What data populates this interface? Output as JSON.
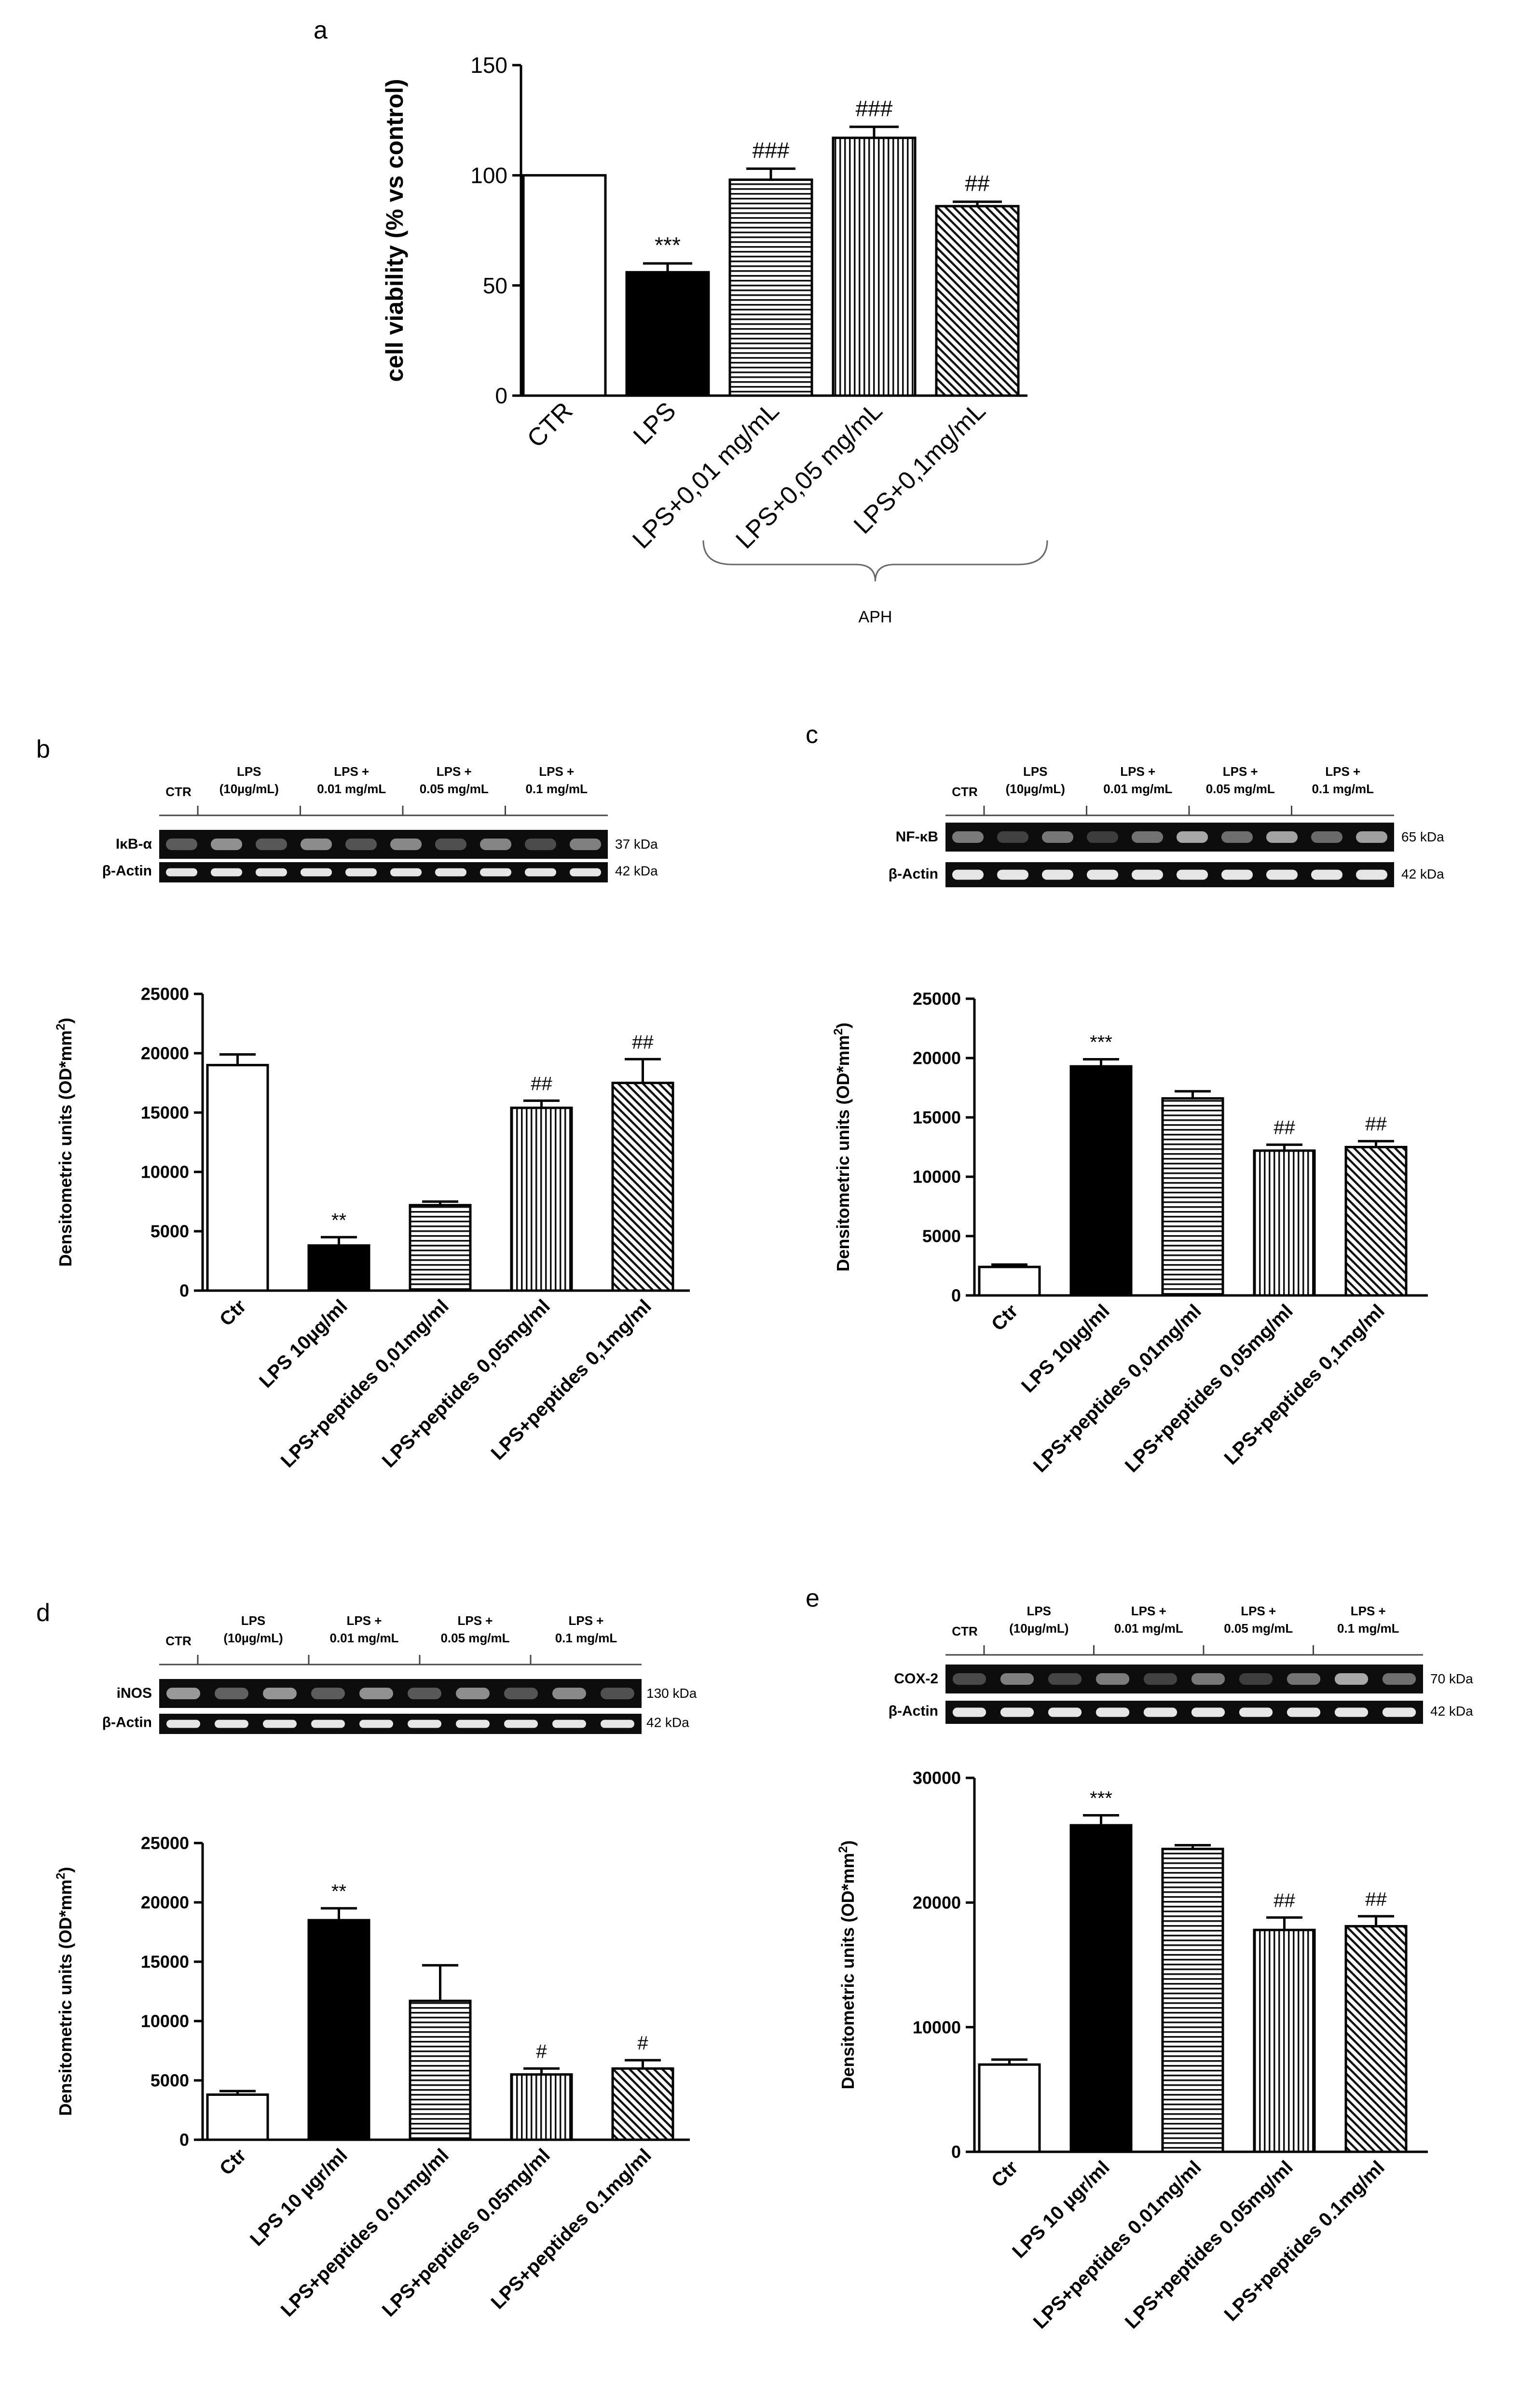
{
  "chart_data": [
    {
      "panel": "a",
      "type": "bar",
      "ylabel": "cell viability (% vs control)",
      "ylim": [
        0,
        150
      ],
      "yticks": [
        0,
        50,
        100,
        150
      ],
      "categories": [
        "CTR",
        "LPS",
        "LPS+0,01 mg/mL",
        "LPS+0,05 mg/mL",
        "LPS+0,1mg/mL"
      ],
      "values": [
        100,
        56,
        98,
        117,
        86
      ],
      "errors": [
        0,
        4,
        5,
        5,
        2
      ],
      "significance": [
        "",
        "***",
        "###",
        "###",
        "##"
      ],
      "bracket_label": "APH",
      "bracket_start": 2
    },
    {
      "panel": "b",
      "type": "bar",
      "ylabel": "Densitometric units (OD*mm²)",
      "ylim": [
        0,
        25000
      ],
      "yticks": [
        0,
        5000,
        10000,
        15000,
        20000,
        25000
      ],
      "categories": [
        "Ctr",
        "LPS 10µg/ml",
        "LPS+peptides 0,01mg/ml",
        "LPS+peptides 0,05mg/ml",
        "LPS+peptides 0,1mg/ml"
      ],
      "values": [
        19000,
        3800,
        7200,
        15400,
        17500
      ],
      "errors": [
        900,
        700,
        300,
        600,
        2000
      ],
      "significance": [
        "",
        "**",
        "",
        "##",
        "##"
      ],
      "blot": {
        "lanes": [
          "CTR",
          "LPS\n(10µg/mL)",
          "LPS +\n0.01 mg/mL",
          "LPS +\n0.05 mg/mL",
          "LPS +\n0.1 mg/mL"
        ],
        "rows": [
          {
            "name": "IκB-α",
            "kda": "37 kDa"
          },
          {
            "name": "β-Actin",
            "kda": "42 kDa"
          }
        ]
      }
    },
    {
      "panel": "c",
      "type": "bar",
      "ylabel": "Densitometric units (OD*mm²)",
      "ylim": [
        0,
        25000
      ],
      "yticks": [
        0,
        5000,
        10000,
        15000,
        20000,
        25000
      ],
      "categories": [
        "Ctr",
        "LPS 10µg/ml",
        "LPS+peptides 0,01mg/ml",
        "LPS+peptides 0,05mg/ml",
        "LPS+peptides 0,1mg/ml"
      ],
      "values": [
        2400,
        19300,
        16600,
        12200,
        12500
      ],
      "errors": [
        200,
        600,
        600,
        500,
        500
      ],
      "significance": [
        "",
        "***",
        "",
        "##",
        "##"
      ],
      "blot": {
        "lanes": [
          "CTR",
          "LPS\n(10µg/mL)",
          "LPS +\n0.01 mg/mL",
          "LPS +\n0.05 mg/mL",
          "LPS +\n0.1 mg/mL"
        ],
        "rows": [
          {
            "name": "NF-κB",
            "kda": "65 kDa"
          },
          {
            "name": "β-Actin",
            "kda": "42 kDa"
          }
        ]
      }
    },
    {
      "panel": "d",
      "type": "bar",
      "ylabel": "Densitometric units (OD*mm²)",
      "ylim": [
        0,
        25000
      ],
      "yticks": [
        0,
        5000,
        10000,
        15000,
        20000,
        25000
      ],
      "categories": [
        "Ctr",
        "LPS 10 µgr/ml",
        "LPS+peptides 0.01mg/ml",
        "LPS+peptides 0.05mg/ml",
        "LPS+peptides 0.1mg/ml"
      ],
      "values": [
        3800,
        18500,
        11700,
        5500,
        6000
      ],
      "errors": [
        300,
        1000,
        3000,
        500,
        700
      ],
      "significance": [
        "",
        "**",
        "",
        "#",
        "#"
      ],
      "blot": {
        "lanes": [
          "CTR",
          "LPS\n(10µg/mL)",
          "LPS +\n0.01 mg/mL",
          "LPS +\n0.05 mg/mL",
          "LPS +\n0.1 mg/mL"
        ],
        "rows": [
          {
            "name": "iNOS",
            "kda": "130 kDa"
          },
          {
            "name": "β-Actin",
            "kda": "42 kDa"
          }
        ]
      }
    },
    {
      "panel": "e",
      "type": "bar",
      "ylabel": "Densitometric units (OD*mm²)",
      "ylim": [
        0,
        30000
      ],
      "yticks": [
        0,
        10000,
        20000,
        30000
      ],
      "categories": [
        "Ctr",
        "LPS 10 µgr/ml",
        "LPS+peptides 0.01mg/ml",
        "LPS+peptides 0.05mg/ml",
        "LPS+peptides 0.1mg/ml"
      ],
      "values": [
        7000,
        26200,
        24300,
        17800,
        18100
      ],
      "errors": [
        400,
        800,
        300,
        1000,
        800
      ],
      "significance": [
        "",
        "***",
        "",
        "##",
        "##"
      ],
      "blot": {
        "lanes": [
          "CTR",
          "LPS\n(10µg/mL)",
          "LPS +\n0.01 mg/mL",
          "LPS +\n0.05 mg/mL",
          "LPS +\n0.1 mg/mL"
        ],
        "rows": [
          {
            "name": "COX-2",
            "kda": "70 kDa"
          },
          {
            "name": "β-Actin",
            "kda": "42 kDa"
          }
        ]
      }
    }
  ]
}
